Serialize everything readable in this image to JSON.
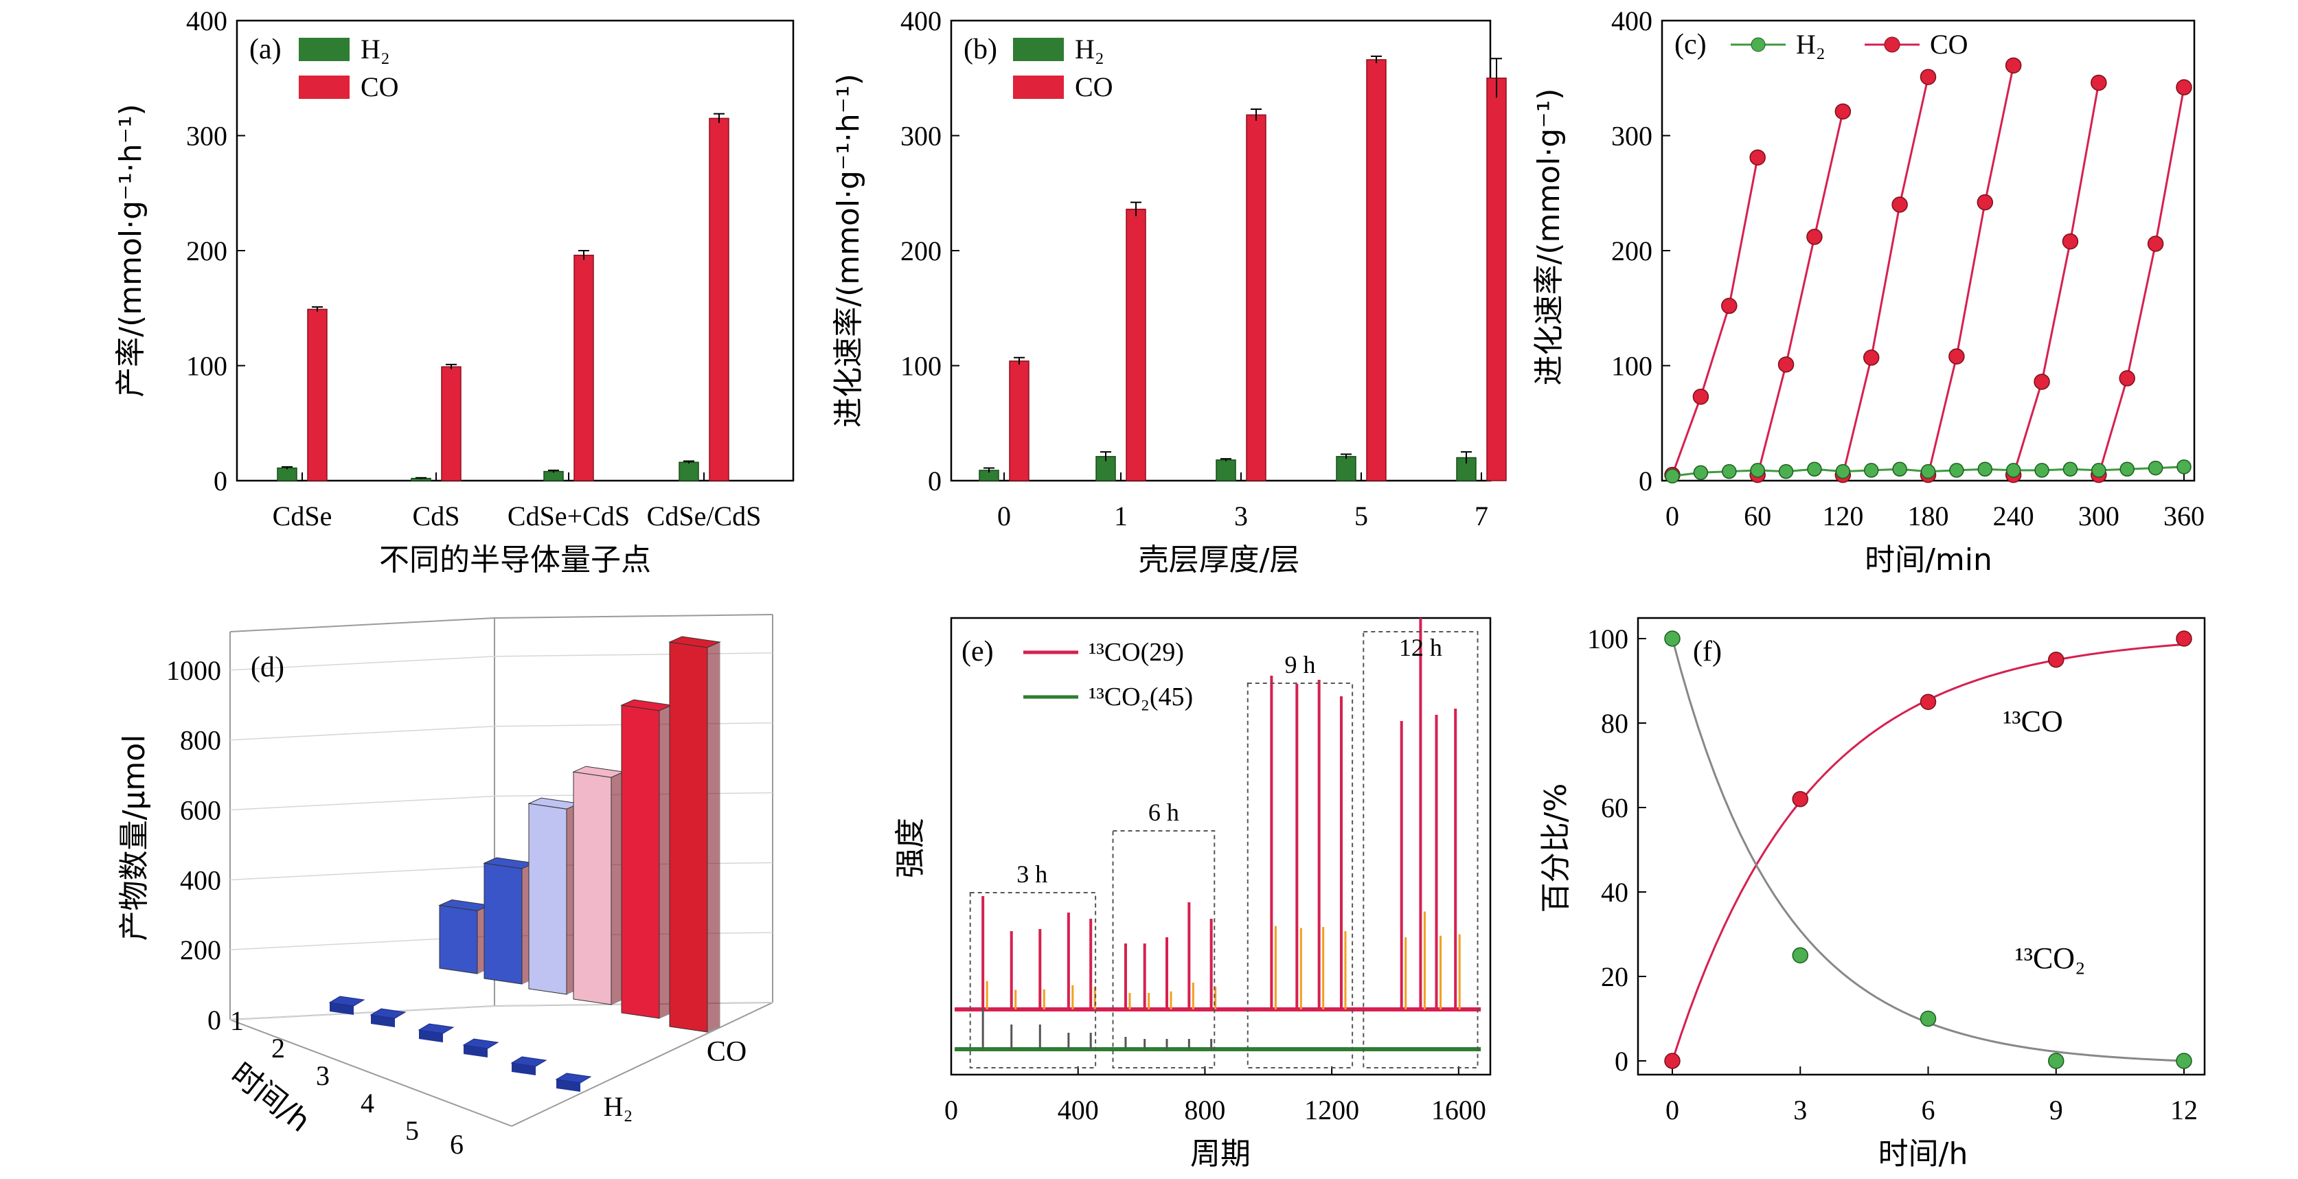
{
  "colors": {
    "h2": "#2e7d32",
    "co": "#e0223a",
    "co_dark": "#b21c2b",
    "line_h2": "#3f9a3f",
    "line_co": "#d62050",
    "line_13co2": "#888888",
    "blue": "#2c46b8",
    "bar3d": [
      "#3a55c8",
      "#3a55c8",
      "#bfc3f2",
      "#f0b8c8",
      "#e5203c",
      "#d81f2f"
    ]
  },
  "chart_data": [
    {
      "panel": "(a)",
      "type": "bar",
      "xlabel": "不同的半导体量子点",
      "ylabel": "产率/(mmol·g⁻¹·h⁻¹)",
      "ylim": [
        0,
        400
      ],
      "yticks": [
        "0",
        "100",
        "200",
        "300",
        "400"
      ],
      "categories": [
        "CdSe",
        "CdS",
        "CdSe+CdS",
        "CdSe/CdS"
      ],
      "legend": [
        "H₂",
        "CO"
      ],
      "series": [
        {
          "name": "H₂",
          "values": [
            11,
            2,
            8,
            16
          ],
          "errors": [
            1,
            0.5,
            1,
            1
          ]
        },
        {
          "name": "CO",
          "values": [
            149,
            99,
            196,
            315
          ],
          "errors": [
            2,
            2,
            4,
            4
          ]
        }
      ]
    },
    {
      "panel": "(b)",
      "type": "bar",
      "xlabel": "壳层厚度/层",
      "ylabel": "进化速率/(mmol·g⁻¹·h⁻¹)",
      "ylim": [
        0,
        400
      ],
      "yticks": [
        "0",
        "100",
        "200",
        "300",
        "400"
      ],
      "categories": [
        "0",
        "1",
        "3",
        "5",
        "7"
      ],
      "legend": [
        "H₂",
        "CO"
      ],
      "series": [
        {
          "name": "H₂",
          "values": [
            9,
            21,
            18,
            21,
            20
          ],
          "errors": [
            2,
            4,
            1,
            2,
            5
          ]
        },
        {
          "name": "CO",
          "values": [
            104,
            236,
            318,
            366,
            350
          ],
          "errors": [
            3,
            6,
            5,
            3,
            17
          ]
        }
      ]
    },
    {
      "panel": "(c)",
      "type": "line",
      "xlabel": "时间/min",
      "ylabel": "进化速率/(mmol·g⁻¹)",
      "xlim": [
        0,
        360
      ],
      "ylim": [
        0,
        400
      ],
      "xticks": [
        "0",
        "60",
        "120",
        "180",
        "240",
        "300",
        "360"
      ],
      "yticks": [
        "0",
        "100",
        "200",
        "300",
        "400"
      ],
      "legend": [
        "H₂",
        "CO"
      ],
      "series": [
        {
          "name": "H₂",
          "x": [
            0,
            20,
            40,
            60,
            80,
            100,
            120,
            140,
            160,
            180,
            200,
            220,
            240,
            260,
            280,
            300,
            320,
            340,
            360
          ],
          "y": [
            4,
            7,
            8,
            9,
            8,
            10,
            8,
            9,
            10,
            8,
            9,
            10,
            9,
            9,
            10,
            9,
            10,
            11,
            12
          ]
        },
        {
          "name": "CO",
          "cycles": [
            {
              "x": [
                0,
                20,
                40,
                60
              ],
              "y": [
                5,
                73,
                152,
                281
              ]
            },
            {
              "x": [
                60,
                80,
                100,
                120
              ],
              "y": [
                5,
                101,
                212,
                321
              ]
            },
            {
              "x": [
                120,
                140,
                160,
                180
              ],
              "y": [
                5,
                107,
                240,
                351
              ]
            },
            {
              "x": [
                180,
                200,
                220,
                240
              ],
              "y": [
                5,
                108,
                242,
                361
              ]
            },
            {
              "x": [
                240,
                260,
                280,
                300
              ],
              "y": [
                5,
                86,
                208,
                346
              ]
            },
            {
              "x": [
                300,
                320,
                340,
                360
              ],
              "y": [
                5,
                89,
                206,
                342
              ]
            }
          ]
        }
      ]
    },
    {
      "panel": "(d)",
      "type": "bar",
      "chart_type": "3d-bar",
      "ylabel": "产物数量/μmol",
      "xlabel": "时间/h",
      "zlim": [
        0,
        1000
      ],
      "zticks": [
        "0",
        "200",
        "400",
        "600",
        "800",
        "1000"
      ],
      "categories": [
        "1",
        "2",
        "3",
        "4",
        "5",
        "6"
      ],
      "depth_labels": [
        "H₂",
        "CO"
      ],
      "series": [
        {
          "name": "H₂",
          "values": [
            8,
            10,
            12,
            14,
            16,
            18
          ]
        },
        {
          "name": "CO",
          "values": [
            180,
            330,
            530,
            650,
            880,
            1100
          ]
        }
      ]
    },
    {
      "panel": "(e)",
      "type": "line",
      "xlabel": "周期",
      "ylabel": "强度",
      "xlim": [
        0,
        1700
      ],
      "xticks": [
        "0",
        "400",
        "800",
        "1200",
        "1600"
      ],
      "legend": [
        "¹³CO(29)",
        "¹³CO₂(45)"
      ],
      "boxes": [
        "3 h",
        "6 h",
        "9 h",
        "12 h"
      ],
      "series": [
        {
          "name": "¹³CO(29)",
          "peaks_x": [
            100,
            190,
            280,
            370,
            440,
            550,
            610,
            680,
            750,
            820,
            1010,
            1090,
            1160,
            1230,
            1420,
            1480,
            1530,
            1590
          ],
          "peaks_h": [
            0.55,
            0.38,
            0.39,
            0.47,
            0.44,
            0.32,
            0.32,
            0.35,
            0.52,
            0.44,
            1.62,
            1.58,
            1.6,
            1.52,
            1.4,
            1.9,
            1.43,
            1.46
          ]
        },
        {
          "name": "¹³CO₂(45)",
          "peaks_x": [
            100,
            190,
            280,
            370,
            440,
            550,
            610,
            680,
            750,
            820
          ],
          "peaks_h": [
            0.2,
            0.12,
            0.12,
            0.08,
            0.08,
            0.06,
            0.05,
            0.05,
            0.05,
            0.05
          ]
        }
      ]
    },
    {
      "panel": "(f)",
      "type": "line",
      "xlabel": "时间/h",
      "ylabel": "百分比/%",
      "xlim": [
        0,
        12
      ],
      "ylim": [
        0,
        100
      ],
      "xticks": [
        "0",
        "3",
        "6",
        "9",
        "12"
      ],
      "yticks": [
        "0",
        "20",
        "40",
        "60",
        "80",
        "100"
      ],
      "annotations": [
        "¹³CO",
        "¹³CO₂"
      ],
      "series": [
        {
          "name": "¹³CO",
          "x": [
            0,
            3,
            6,
            9,
            12
          ],
          "y": [
            0,
            62,
            85,
            95,
            100
          ]
        },
        {
          "name": "¹³CO₂",
          "x": [
            0,
            3,
            6,
            9,
            12
          ],
          "y": [
            100,
            25,
            10,
            0,
            0
          ]
        }
      ]
    }
  ]
}
